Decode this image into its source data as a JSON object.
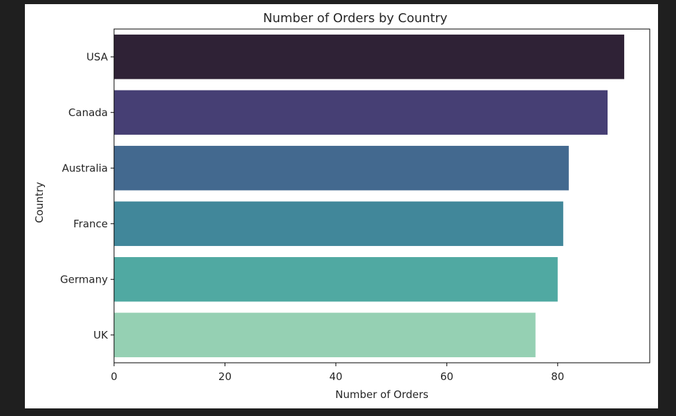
{
  "chart_data": {
    "type": "bar",
    "orientation": "horizontal",
    "title": "Number of Orders by Country",
    "xlabel": "Number of Orders",
    "ylabel": "Country",
    "categories": [
      "USA",
      "Canada",
      "Australia",
      "France",
      "Germany",
      "UK"
    ],
    "values": [
      92,
      89,
      82,
      81,
      80,
      76
    ],
    "colors": [
      "#2f2236",
      "#463f74",
      "#43698f",
      "#41879a",
      "#50a9a2",
      "#95d0b3"
    ],
    "xlim": [
      0,
      96.6
    ],
    "xticks": [
      0,
      20,
      40,
      60,
      80
    ],
    "grid": false
  }
}
